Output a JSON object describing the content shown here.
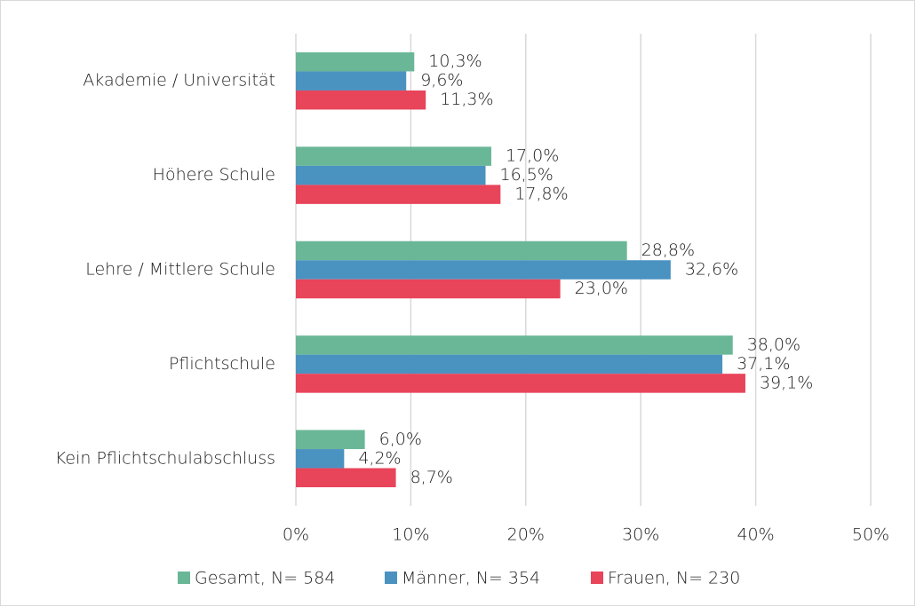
{
  "chart_data": {
    "type": "hbar",
    "categories": [
      "Akademie / Universität",
      "Höhere Schule",
      "Lehre / Mittlere Schule",
      "Pflichtschule",
      "Kein Pflichtschulabschluss"
    ],
    "series": [
      {
        "name": "Gesamt, N= 584",
        "color": "#6ab797",
        "values": [
          10.3,
          17.0,
          28.8,
          38.0,
          6.0
        ],
        "value_labels": [
          "10,3%",
          "17,0%",
          "28,8%",
          "38,0%",
          "6,0%"
        ]
      },
      {
        "name": "Männer, N= 354",
        "color": "#4a92c0",
        "values": [
          9.6,
          16.5,
          32.6,
          37.1,
          4.2
        ],
        "value_labels": [
          "9,6%",
          "16,5%",
          "32,6%",
          "37,1%",
          "4,2%"
        ]
      },
      {
        "name": "Frauen, N= 230",
        "color": "#e8445a",
        "values": [
          11.3,
          17.8,
          23.0,
          39.1,
          8.7
        ],
        "value_labels": [
          "11,3%",
          "17,8%",
          "23,0%",
          "39,1%",
          "8,7%"
        ]
      }
    ],
    "xlim": [
      0,
      50
    ],
    "xticks": [
      {
        "value": 0,
        "label": "0%"
      },
      {
        "value": 10,
        "label": "10%"
      },
      {
        "value": 20,
        "label": "20%"
      },
      {
        "value": 30,
        "label": "30%"
      },
      {
        "value": 40,
        "label": "40%"
      },
      {
        "value": 50,
        "label": "50%"
      }
    ],
    "grid": true,
    "legend": "bottom"
  }
}
